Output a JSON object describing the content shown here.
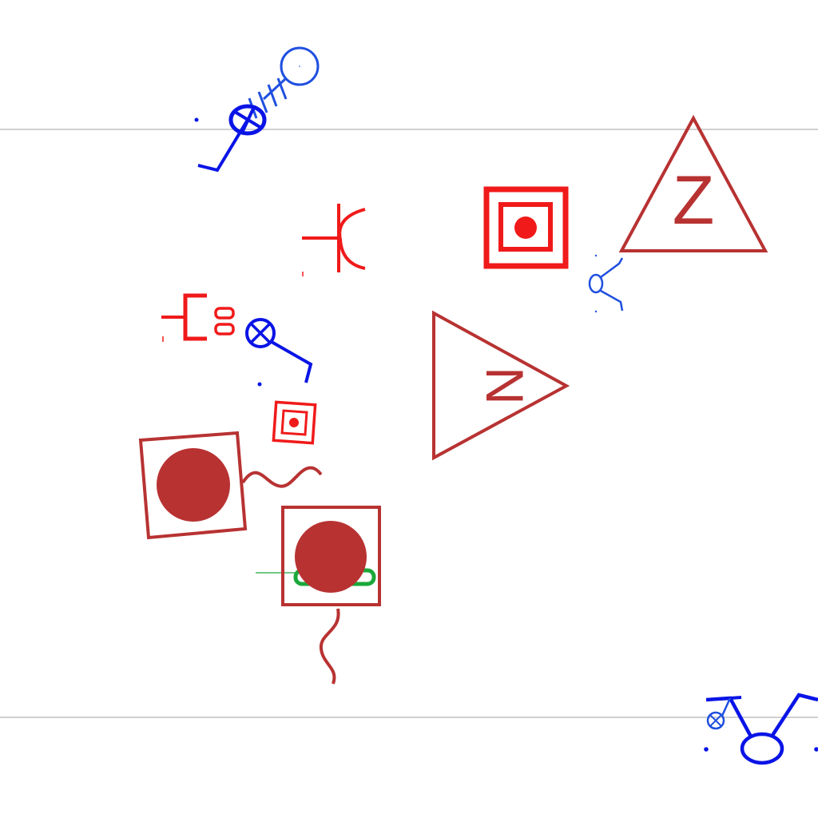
{
  "diagram": {
    "background_color": "#ffffff",
    "palette": {
      "blue": "#0a14e6",
      "light_blue": "#1f4fe0",
      "red": "#f01a1a",
      "dark_red": "#b83232",
      "green": "#1aa83a",
      "guide_gray": "#b4b4b4"
    },
    "symbols": [
      {
        "id": "antenna-top",
        "icon": "antenna-pin-icon",
        "color": "blue"
      },
      {
        "id": "capacitor-curve",
        "icon": "capacitor-curve-icon",
        "color": "red"
      },
      {
        "id": "concentric-square-large",
        "icon": "concentric-square-icon",
        "color": "red"
      },
      {
        "id": "triangle-z",
        "icon": "triangle-letter-icon",
        "color": "dark_red",
        "letter": "Z"
      },
      {
        "id": "small-pin-figure",
        "icon": "pin-figure-icon",
        "color": "blue"
      },
      {
        "id": "bracket-connector",
        "icon": "connector-bracket-icon",
        "color": "red",
        "letter": "DD"
      },
      {
        "id": "crossed-circle-lead",
        "icon": "crossed-circle-icon",
        "color": "blue"
      },
      {
        "id": "triangle-n",
        "icon": "triangle-letter-icon",
        "color": "dark_red",
        "letter": "N"
      },
      {
        "id": "concentric-square-small",
        "icon": "concentric-square-icon",
        "color": "red"
      },
      {
        "id": "square-dot-wave",
        "icon": "square-dot-icon",
        "color": "dark_red"
      },
      {
        "id": "square-dot-wave-bottom",
        "icon": "square-dot-icon",
        "color": "dark_red"
      },
      {
        "id": "green-bar",
        "icon": "bar-icon",
        "color": "green"
      },
      {
        "id": "figure-bottom-right",
        "icon": "pin-figure-icon",
        "color": "blue"
      }
    ]
  }
}
